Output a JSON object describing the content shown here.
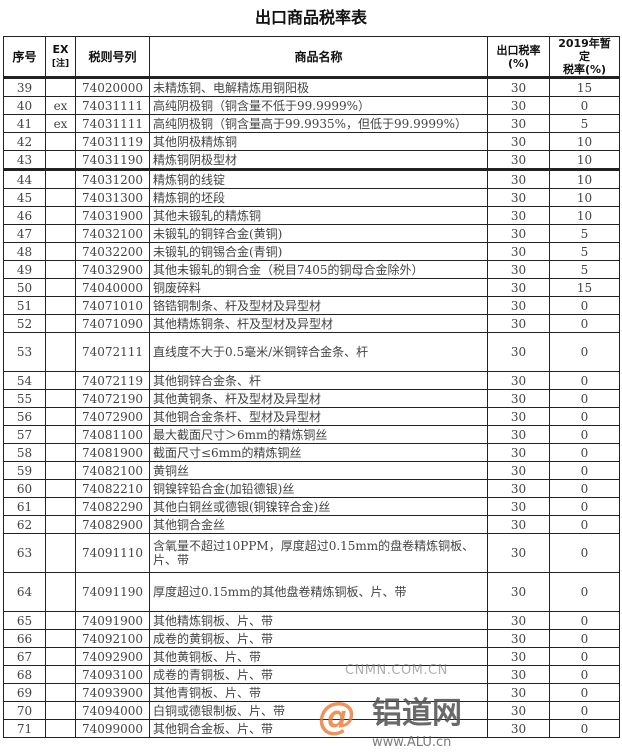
{
  "title": "出口商品税率表",
  "headers": {
    "seq": "序号",
    "ex": "EX",
    "ex_note": "[注]",
    "code": "税则号列",
    "name": "商品名称",
    "export_rate": "出口税率",
    "export_rate_unit": "(%)",
    "temp_rate": "2019年暂定",
    "temp_rate_unit": "税率(%)"
  },
  "rows": [
    {
      "seq": "39",
      "ex": "",
      "code": "74020000",
      "name": "未精炼铜、电解精炼用铜阳极",
      "rate": "30",
      "temp": "15"
    },
    {
      "seq": "40",
      "ex": "ex",
      "code": "74031111",
      "name": "高纯阴极铜（铜含量不低于99.9999%）",
      "rate": "30",
      "temp": "0"
    },
    {
      "seq": "41",
      "ex": "ex",
      "code": "74031111",
      "name": "高纯阴极铜（铜含量高于99.9935%，但低于99.9999%）",
      "rate": "30",
      "temp": "5"
    },
    {
      "seq": "42",
      "ex": "",
      "code": "74031119",
      "name": "其他阴极精炼铜",
      "rate": "30",
      "temp": "10"
    },
    {
      "seq": "43",
      "ex": "",
      "code": "74031190",
      "name": "精炼铜阴极型材",
      "rate": "30",
      "temp": "10"
    },
    {
      "seq": "44",
      "ex": "",
      "code": "74031200",
      "name": "精炼铜的线锭",
      "rate": "30",
      "temp": "10"
    },
    {
      "seq": "45",
      "ex": "",
      "code": "74031300",
      "name": "精炼铜的坯段",
      "rate": "30",
      "temp": "10"
    },
    {
      "seq": "46",
      "ex": "",
      "code": "74031900",
      "name": "其他未锻轧的精炼铜",
      "rate": "30",
      "temp": "10"
    },
    {
      "seq": "47",
      "ex": "",
      "code": "74032100",
      "name": "未锻轧的铜锌合金(黄铜)",
      "rate": "30",
      "temp": "5"
    },
    {
      "seq": "48",
      "ex": "",
      "code": "74032200",
      "name": "未锻轧的铜锡合金(青铜)",
      "rate": "30",
      "temp": "5"
    },
    {
      "seq": "49",
      "ex": "",
      "code": "74032900",
      "name": "其他未锻轧的铜合金（税目7405的铜母合金除外）",
      "rate": "30",
      "temp": "5"
    },
    {
      "seq": "50",
      "ex": "",
      "code": "74040000",
      "name": "铜废碎料",
      "rate": "30",
      "temp": "15"
    },
    {
      "seq": "51",
      "ex": "",
      "code": "74071010",
      "name": "铬锆铜制条、杆及型材及异型材",
      "rate": "30",
      "temp": "0"
    },
    {
      "seq": "52",
      "ex": "",
      "code": "74071090",
      "name": "其他精炼铜条、杆及型材及异型材",
      "rate": "30",
      "temp": "0"
    },
    {
      "seq": "53",
      "ex": "",
      "code": "74072111",
      "name": "直线度不大于0.5毫米/米铜锌合金条、杆",
      "rate": "30",
      "temp": "0"
    },
    {
      "seq": "54",
      "ex": "",
      "code": "74072119",
      "name": "其他铜锌合金条、杆",
      "rate": "30",
      "temp": "0"
    },
    {
      "seq": "55",
      "ex": "",
      "code": "74072190",
      "name": "其他黄铜条、杆及型材及异型材",
      "rate": "30",
      "temp": "0"
    },
    {
      "seq": "56",
      "ex": "",
      "code": "74072900",
      "name": "其他铜合金条杆、型材及异型材",
      "rate": "30",
      "temp": "0"
    },
    {
      "seq": "57",
      "ex": "",
      "code": "74081100",
      "name": "最大截面尺寸＞6mm的精炼铜丝",
      "rate": "30",
      "temp": "0"
    },
    {
      "seq": "58",
      "ex": "",
      "code": "74081900",
      "name": "截面尺寸≤6mm的精炼铜丝",
      "rate": "30",
      "temp": "0"
    },
    {
      "seq": "59",
      "ex": "",
      "code": "74082100",
      "name": "黄铜丝",
      "rate": "30",
      "temp": "0"
    },
    {
      "seq": "60",
      "ex": "",
      "code": "74082210",
      "name": "铜镍锌铅合金(加铅德银)丝",
      "rate": "30",
      "temp": "0"
    },
    {
      "seq": "61",
      "ex": "",
      "code": "74082290",
      "name": "其他白铜丝或德银(铜镍锌合金)丝",
      "rate": "30",
      "temp": "0"
    },
    {
      "seq": "62",
      "ex": "",
      "code": "74082900",
      "name": "其他铜合金丝",
      "rate": "30",
      "temp": "0"
    },
    {
      "seq": "63",
      "ex": "",
      "code": "74091110",
      "name": "含氧量不超过10PPM，厚度超过0.15mm的盘卷精炼铜板、片、带",
      "rate": "30",
      "temp": "0"
    },
    {
      "seq": "64",
      "ex": "",
      "code": "74091190",
      "name": "厚度超过0.15mm的其他盘卷精炼铜板、片、带",
      "rate": "30",
      "temp": "0"
    },
    {
      "seq": "65",
      "ex": "",
      "code": "74091900",
      "name": "其他精炼铜板、片、带",
      "rate": "30",
      "temp": "0"
    },
    {
      "seq": "66",
      "ex": "",
      "code": "74092100",
      "name": "成卷的黄铜板、片、带",
      "rate": "30",
      "temp": "0"
    },
    {
      "seq": "67",
      "ex": "",
      "code": "74092900",
      "name": "其他黄铜板、片、带",
      "rate": "30",
      "temp": "0"
    },
    {
      "seq": "68",
      "ex": "",
      "code": "74093100",
      "name": "成卷的青铜板、片、带",
      "rate": "30",
      "temp": "0"
    },
    {
      "seq": "69",
      "ex": "",
      "code": "74093900",
      "name": "其他青铜板、片、带",
      "rate": "30",
      "temp": "0"
    },
    {
      "seq": "70",
      "ex": "",
      "code": "74094000",
      "name": "白铜或德银制板、片、带",
      "rate": "30",
      "temp": "0"
    },
    {
      "seq": "71",
      "ex": "",
      "code": "74099000",
      "name": "其他铜合金板、片、带",
      "rate": "30",
      "temp": "0"
    }
  ],
  "watermark": {
    "site": "CNMN.COM.CN",
    "logo_mark": "alu",
    "brand": "铝道网",
    "url": "www.ALU.cn"
  }
}
